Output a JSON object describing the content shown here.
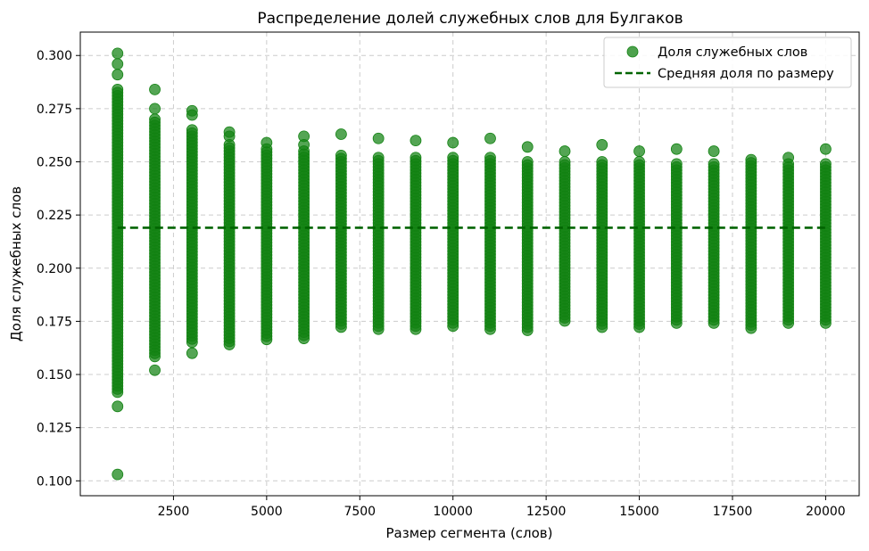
{
  "chart_data": {
    "type": "scatter",
    "title": "Распределение долей служебных слов для Булгаков",
    "xlabel": "Размер сегмента (слов)",
    "ylabel": "Доля служебных слов",
    "xlim": [
      0,
      20900
    ],
    "ylim": [
      0.093,
      0.311
    ],
    "x_ticks": [
      2500,
      5000,
      7500,
      10000,
      12500,
      15000,
      17500,
      20000
    ],
    "x_tick_labels": [
      "2500",
      "5000",
      "7500",
      "10000",
      "12500",
      "15000",
      "17500",
      "20000"
    ],
    "y_ticks": [
      0.1,
      0.125,
      0.15,
      0.175,
      0.2,
      0.225,
      0.25,
      0.275,
      0.3
    ],
    "y_tick_labels": [
      "0.100",
      "0.125",
      "0.150",
      "0.175",
      "0.200",
      "0.225",
      "0.250",
      "0.275",
      "0.300"
    ],
    "grid": true,
    "legend_position": "top-right",
    "colors": {
      "points": "#128212",
      "mean_line": "#006400"
    },
    "series": [
      {
        "name": "Доля служебных слов",
        "kind": "scatter",
        "groups": [
          {
            "x": 1000,
            "min": 0.141,
            "max": 0.284,
            "outliers": [
              0.103,
              0.135,
              0.291,
              0.296,
              0.301
            ]
          },
          {
            "x": 2000,
            "min": 0.158,
            "max": 0.27,
            "outliers": [
              0.152,
              0.275,
              0.284
            ]
          },
          {
            "x": 3000,
            "min": 0.165,
            "max": 0.265,
            "outliers": [
              0.16,
              0.272,
              0.274
            ]
          },
          {
            "x": 4000,
            "min": 0.163,
            "max": 0.258,
            "outliers": [
              0.262,
              0.264
            ]
          },
          {
            "x": 5000,
            "min": 0.166,
            "max": 0.256,
            "outliers": [
              0.259
            ]
          },
          {
            "x": 6000,
            "min": 0.166,
            "max": 0.255,
            "outliers": [
              0.258,
              0.262
            ]
          },
          {
            "x": 7000,
            "min": 0.171,
            "max": 0.253,
            "outliers": [
              0.263
            ]
          },
          {
            "x": 8000,
            "min": 0.17,
            "max": 0.252,
            "outliers": [
              0.261
            ]
          },
          {
            "x": 9000,
            "min": 0.17,
            "max": 0.252,
            "outliers": [
              0.26
            ]
          },
          {
            "x": 10000,
            "min": 0.172,
            "max": 0.252,
            "outliers": [
              0.259
            ]
          },
          {
            "x": 11000,
            "min": 0.171,
            "max": 0.252,
            "outliers": [
              0.261
            ]
          },
          {
            "x": 12000,
            "min": 0.17,
            "max": 0.25,
            "outliers": [
              0.257
            ]
          },
          {
            "x": 13000,
            "min": 0.174,
            "max": 0.25,
            "outliers": [
              0.255
            ]
          },
          {
            "x": 14000,
            "min": 0.171,
            "max": 0.25,
            "outliers": [
              0.258
            ]
          },
          {
            "x": 15000,
            "min": 0.171,
            "max": 0.25,
            "outliers": [
              0.255
            ]
          },
          {
            "x": 16000,
            "min": 0.174,
            "max": 0.249,
            "outliers": [
              0.256
            ]
          },
          {
            "x": 17000,
            "min": 0.174,
            "max": 0.249,
            "outliers": [
              0.255
            ]
          },
          {
            "x": 18000,
            "min": 0.171,
            "max": 0.251,
            "outliers": []
          },
          {
            "x": 19000,
            "min": 0.174,
            "max": 0.249,
            "outliers": [
              0.252
            ]
          },
          {
            "x": 20000,
            "min": 0.173,
            "max": 0.249,
            "outliers": [
              0.256
            ]
          }
        ]
      },
      {
        "name": "Средняя доля по размеру",
        "kind": "dashed-line",
        "x": [
          1000,
          2000,
          3000,
          4000,
          5000,
          6000,
          7000,
          8000,
          9000,
          10000,
          11000,
          12000,
          13000,
          14000,
          15000,
          16000,
          17000,
          18000,
          19000,
          20000
        ],
        "y": [
          0.219,
          0.219,
          0.219,
          0.219,
          0.219,
          0.219,
          0.219,
          0.219,
          0.219,
          0.219,
          0.219,
          0.219,
          0.219,
          0.219,
          0.219,
          0.219,
          0.219,
          0.219,
          0.219,
          0.219
        ]
      }
    ]
  }
}
